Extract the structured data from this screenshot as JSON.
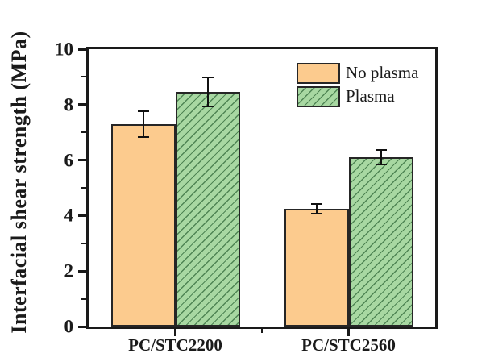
{
  "figure": {
    "background": "#ffffff"
  },
  "chart_data": {
    "type": "bar",
    "title": "",
    "xlabel": "",
    "ylabel": "Interfacial shear strength (MPa)",
    "categories": [
      "PC/STC2200",
      "PC/STC2560"
    ],
    "series": [
      {
        "name": "No plasma",
        "values": [
          7.3,
          4.25
        ],
        "errors": [
          0.5,
          0.2
        ],
        "fill": "#fccb8e",
        "hatch": "none"
      },
      {
        "name": "Plasma",
        "values": [
          8.45,
          6.1
        ],
        "errors": [
          0.55,
          0.3
        ],
        "fill": "#a8d8a2",
        "hatch": "diagonal-forward"
      }
    ],
    "ylim": [
      0,
      10
    ],
    "y_major_ticks": [
      0,
      2,
      4,
      6,
      8,
      10
    ],
    "y_minor_ticks": [
      1,
      3,
      5,
      7,
      9
    ],
    "x_minor_tick_between_groups": true,
    "legend_position": "top-right",
    "grid": false,
    "error_bars": true
  },
  "colors": {
    "axis": "#1a1a1a",
    "bar_border": "#262626",
    "hatch_line": "#4f8554",
    "error_bar": "#111111",
    "text": "#1a1a1a"
  }
}
